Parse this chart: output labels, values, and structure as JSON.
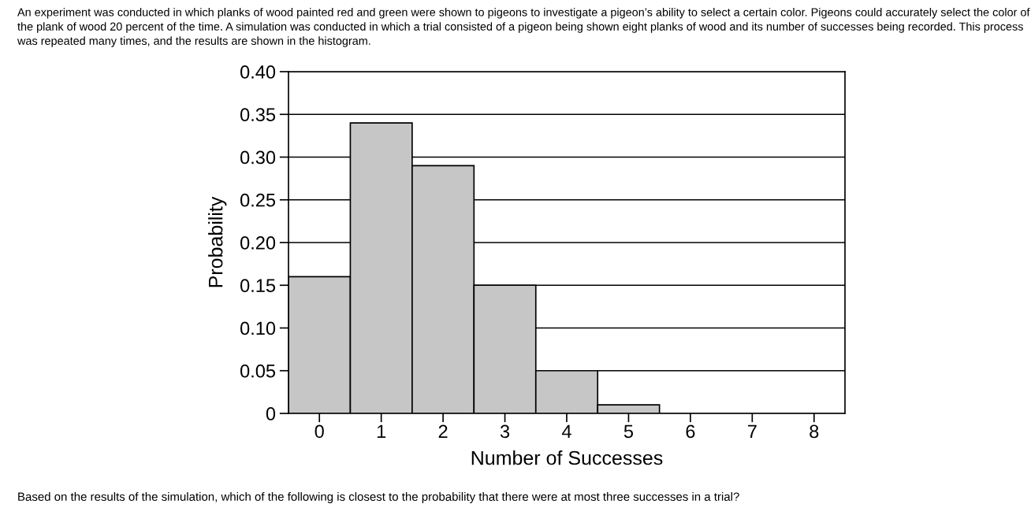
{
  "chart_data": {
    "type": "histogram",
    "title": "An experiment was conducted in which planks of wood painted red and green were shown to pigeons to investigate a pigeon’s ability to select a certain color. Pigeons could accurately select the color of the plank of wood 20 percent of the time. A simulation was conducted in which a trial consisted of a pigeon being shown eight planks of wood and its number of successes being recorded. This process was repeated many times, and the results are shown in the histogram.",
    "xlabel": "Number of Successes",
    "ylabel": "Probability",
    "bins": [
      -0.5,
      0.5,
      1.5,
      2.5,
      3.5,
      4.5,
      5.5,
      6.5,
      7.5,
      8.5
    ],
    "values": [
      0.16,
      0.34,
      0.29,
      0.15,
      0.05,
      0.01,
      0,
      0,
      0
    ],
    "color": "#c6c6c6",
    "xlim": [
      -0.5,
      8.5
    ],
    "xticks": [
      0,
      1,
      2,
      3,
      4,
      5,
      6,
      7,
      8
    ],
    "ylim": [
      0,
      0.4
    ],
    "yticks": [
      0,
      {
        "value": 0.05,
        "label": "0.05"
      },
      {
        "value": 0.1,
        "label": "0.10"
      },
      {
        "value": 0.15,
        "label": "0.15"
      },
      {
        "value": 0.2,
        "label": "0.20"
      },
      {
        "value": 0.25,
        "label": "0.25"
      },
      {
        "value": 0.3,
        "label": "0.30"
      },
      {
        "value": 0.35,
        "label": "0.35"
      },
      {
        "value": 0.4,
        "label": "0.40"
      }
    ],
    "grid": "y",
    "legend": false,
    "annotations": [
      "Based on the results of the simulation, which of the following is closest to the probability that there were at most three successes in a trial?"
    ]
  }
}
